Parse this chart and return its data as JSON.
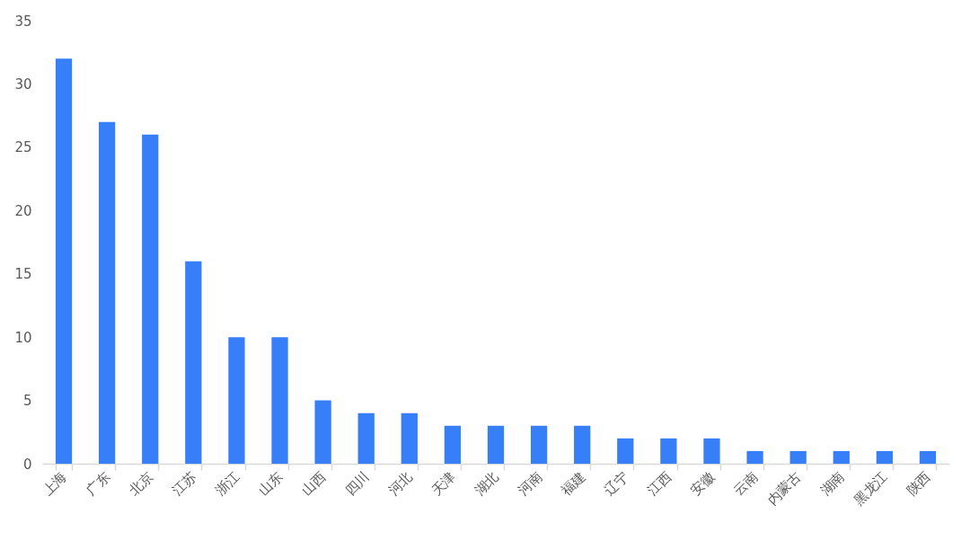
{
  "chart_data": {
    "type": "bar",
    "categories": [
      "上海",
      "广东",
      "北京",
      "江苏",
      "浙江",
      "山东",
      "山西",
      "四川",
      "河北",
      "天津",
      "湖北",
      "河南",
      "福建",
      "辽宁",
      "江西",
      "安徽",
      "云南",
      "内蒙古",
      "湖南",
      "黑龙江",
      "陕西"
    ],
    "values": [
      32,
      27,
      26,
      16,
      10,
      10,
      5,
      4,
      4,
      3,
      3,
      3,
      3,
      2,
      2,
      2,
      1,
      1,
      1,
      1,
      1
    ],
    "color": "#377ff9",
    "ylim": [
      0,
      35
    ],
    "yticks": [
      0,
      5,
      10,
      15,
      20,
      25,
      30,
      35
    ]
  }
}
